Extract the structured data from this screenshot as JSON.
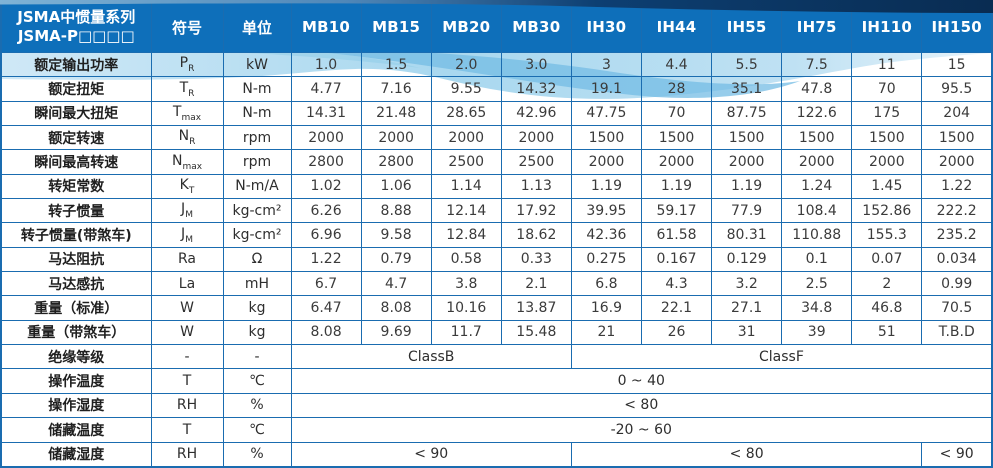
{
  "header": {
    "title_line1": "JSMA中惯量系列",
    "title_line2": "JSMA-P□□□□",
    "symbol_label": "符号",
    "unit_label": "单位",
    "models": [
      "MB10",
      "MB15",
      "MB20",
      "MB30",
      "IH30",
      "IH44",
      "IH55",
      "IH75",
      "IH110",
      "IH150"
    ]
  },
  "rows": [
    {
      "label": "额定输出功率",
      "sym": "P",
      "sub": "R",
      "unit": "kW",
      "values": [
        "1.0",
        "1.5",
        "2.0",
        "3.0",
        "3",
        "4.4",
        "5.5",
        "7.5",
        "11",
        "15"
      ]
    },
    {
      "label": "额定扭矩",
      "sym": "T",
      "sub": "R",
      "unit": "N-m",
      "values": [
        "4.77",
        "7.16",
        "9.55",
        "14.32",
        "19.1",
        "28",
        "35.1",
        "47.8",
        "70",
        "95.5"
      ]
    },
    {
      "label": "瞬间最大扭矩",
      "sym": "T",
      "sub": "max",
      "unit": "N-m",
      "values": [
        "14.31",
        "21.48",
        "28.65",
        "42.96",
        "47.75",
        "70",
        "87.75",
        "122.6",
        "175",
        "204"
      ]
    },
    {
      "label": "额定转速",
      "sym": "N",
      "sub": "R",
      "unit": "rpm",
      "values": [
        "2000",
        "2000",
        "2000",
        "2000",
        "1500",
        "1500",
        "1500",
        "1500",
        "1500",
        "1500"
      ]
    },
    {
      "label": "瞬间最高转速",
      "sym": "N",
      "sub": "max",
      "unit": "rpm",
      "values": [
        "2800",
        "2800",
        "2500",
        "2500",
        "2000",
        "2000",
        "2000",
        "2000",
        "2000",
        "2000"
      ]
    },
    {
      "label": "转矩常数",
      "sym": "K",
      "sub": "T",
      "unit": "N-m/A",
      "values": [
        "1.02",
        "1.06",
        "1.14",
        "1.13",
        "1.19",
        "1.19",
        "1.19",
        "1.24",
        "1.45",
        "1.22"
      ]
    },
    {
      "label": "转子惯量",
      "sym": "J",
      "sub": "M",
      "unit": "kg-cm²",
      "values": [
        "6.26",
        "8.88",
        "12.14",
        "17.92",
        "39.95",
        "59.17",
        "77.9",
        "108.4",
        "152.86",
        "222.2"
      ]
    },
    {
      "label": "转子惯量(带煞车)",
      "sym": "J",
      "sub": "M",
      "unit": "kg-cm²",
      "values": [
        "6.96",
        "9.58",
        "12.84",
        "18.62",
        "42.36",
        "61.58",
        "80.31",
        "110.88",
        "155.3",
        "235.2"
      ]
    },
    {
      "label": "马达阻抗",
      "sym": "Ra",
      "sub": "",
      "unit": "Ω",
      "values": [
        "1.22",
        "0.79",
        "0.58",
        "0.33",
        "0.275",
        "0.167",
        "0.129",
        "0.1",
        "0.07",
        "0.034"
      ]
    },
    {
      "label": "马达感抗",
      "sym": "La",
      "sub": "",
      "unit": "mH",
      "values": [
        "6.7",
        "4.7",
        "3.8",
        "2.1",
        "6.8",
        "4.3",
        "3.2",
        "2.5",
        "2",
        "0.99"
      ]
    },
    {
      "label": "重量（标准）",
      "sym": "W",
      "sub": "",
      "unit": "kg",
      "values": [
        "6.47",
        "8.08",
        "10.16",
        "13.87",
        "16.9",
        "22.1",
        "27.1",
        "34.8",
        "46.8",
        "70.5"
      ]
    },
    {
      "label": "重量（带煞车）",
      "sym": "W",
      "sub": "",
      "unit": "kg",
      "values": [
        "8.08",
        "9.69",
        "11.7",
        "15.48",
        "21",
        "26",
        "31",
        "39",
        "51",
        "T.B.D"
      ]
    },
    {
      "label": "绝缘等级",
      "sym": "-",
      "sub": "",
      "unit": "-",
      "spans": [
        {
          "text": "ClassB",
          "cols": 4
        },
        {
          "text": "ClassF",
          "cols": 6
        }
      ]
    },
    {
      "label": "操作温度",
      "sym": "T",
      "sub": "",
      "unit": "℃",
      "spans": [
        {
          "text": "0 ~ 40",
          "cols": 10
        }
      ]
    },
    {
      "label": "操作湿度",
      "sym": "RH",
      "sub": "",
      "unit": "%",
      "spans": [
        {
          "text": "< 80",
          "cols": 10
        }
      ]
    },
    {
      "label": "储藏温度",
      "sym": "T",
      "sub": "",
      "unit": "℃",
      "spans": [
        {
          "text": "-20 ~ 60",
          "cols": 10
        }
      ]
    },
    {
      "label": "储藏湿度",
      "sym": "RH",
      "sub": "",
      "unit": "%",
      "spans": [
        {
          "text": "< 90",
          "cols": 4
        },
        {
          "text": "< 80",
          "cols": 5
        },
        {
          "text": "< 90",
          "cols": 1
        }
      ]
    }
  ],
  "colors": {
    "header_bg": "#0e6fba",
    "border": "#1a6cb0",
    "top_band_dark": "#0a3560",
    "top_band_light": "#7fb3d6",
    "wave_light_1": "#cfe8f6",
    "wave_light_2": "#9ed2ee",
    "wave_accent": "#74bce4",
    "number_text": "#3b3b3b"
  }
}
